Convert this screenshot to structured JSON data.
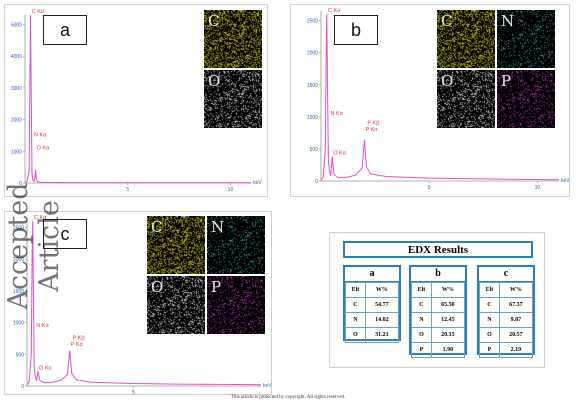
{
  "footer": "This article is protected by copyright. All rights reserved.",
  "watermark": "Accepted Article",
  "axis_unit": "keV",
  "colors": {
    "spectrum": "#e24fcf",
    "peak_label": "#d83a3a",
    "axis_text": "#2b62b8",
    "table_border": "#2f7fb7"
  },
  "panels": [
    {
      "id": "a",
      "label": "a",
      "maps": [
        {
          "element": "C",
          "color": "#c9c21f"
        },
        {
          "element": "O",
          "color": "#e0e0e0"
        }
      ]
    },
    {
      "id": "b",
      "label": "b",
      "maps": [
        {
          "element": "C",
          "color": "#c9c21f"
        },
        {
          "element": "N",
          "color": "#3fb2b8"
        },
        {
          "element": "O",
          "color": "#e0e0e0"
        },
        {
          "element": "P",
          "color": "#c03ac0"
        }
      ]
    },
    {
      "id": "c",
      "label": "c",
      "maps": [
        {
          "element": "C",
          "color": "#c9c21f"
        },
        {
          "element": "N",
          "color": "#3fb2b8"
        },
        {
          "element": "O",
          "color": "#e0e0e0"
        },
        {
          "element": "P",
          "color": "#c03ac0"
        }
      ]
    }
  ],
  "chart_data": [
    {
      "type": "line",
      "panel": "a",
      "xlabel": "keV",
      "xlim": [
        0,
        11
      ],
      "ylim": [
        0,
        5300
      ],
      "xticks": [
        5,
        10
      ],
      "yticks": [
        0,
        1000,
        2000,
        3000,
        4000,
        5000
      ],
      "x": [
        0,
        0.1,
        0.2,
        0.24,
        0.27,
        0.3,
        0.34,
        0.39,
        0.45,
        0.5,
        0.52,
        0.55,
        0.6,
        0.8,
        1.5,
        3,
        5,
        7,
        9,
        11
      ],
      "y": [
        20,
        60,
        400,
        3000,
        5300,
        3000,
        300,
        80,
        50,
        260,
        420,
        150,
        40,
        25,
        15,
        10,
        8,
        6,
        5,
        5
      ],
      "peak_labels": [
        {
          "text": "C Kα",
          "x": 0.28,
          "y": 5300
        },
        {
          "text": "N Kα",
          "x": 0.39,
          "y": 1400
        },
        {
          "text": "O Kα",
          "x": 0.52,
          "y": 1000
        }
      ]
    },
    {
      "type": "line",
      "panel": "b",
      "xlabel": "keV",
      "xlim": [
        0,
        11
      ],
      "ylim": [
        0,
        2650
      ],
      "xticks": [
        5,
        10
      ],
      "yticks": [
        0,
        500,
        1000,
        1500,
        2000,
        2500
      ],
      "x": [
        0,
        0.1,
        0.2,
        0.24,
        0.27,
        0.3,
        0.34,
        0.39,
        0.45,
        0.52,
        0.6,
        0.8,
        1.2,
        1.6,
        1.9,
        2.01,
        2.1,
        2.3,
        3,
        5,
        7,
        9,
        11
      ],
      "y": [
        20,
        60,
        500,
        2000,
        2600,
        1500,
        300,
        160,
        80,
        380,
        100,
        50,
        60,
        90,
        200,
        640,
        220,
        110,
        70,
        45,
        35,
        25,
        20
      ],
      "peak_labels": [
        {
          "text": "C Kα",
          "x": 0.28,
          "y": 2600
        },
        {
          "text": "N Kα",
          "x": 0.39,
          "y": 1000
        },
        {
          "text": "O Kα",
          "x": 0.52,
          "y": 380
        },
        {
          "text": "P Kβ",
          "x": 2.1,
          "y": 850
        },
        {
          "text": "P Kα",
          "x": 2.01,
          "y": 750
        }
      ]
    },
    {
      "type": "line",
      "panel": "c",
      "xlabel": "keV",
      "xlim": [
        0,
        11
      ],
      "ylim": [
        0,
        2650
      ],
      "xticks": [
        5
      ],
      "yticks": [
        0,
        500,
        1000,
        1500,
        2000,
        2500
      ],
      "x": [
        0,
        0.1,
        0.2,
        0.24,
        0.27,
        0.3,
        0.34,
        0.39,
        0.45,
        0.52,
        0.6,
        0.8,
        1.2,
        1.6,
        1.9,
        2.01,
        2.1,
        2.3,
        3,
        5,
        7,
        9,
        11
      ],
      "y": [
        20,
        60,
        500,
        2000,
        2600,
        1500,
        300,
        150,
        80,
        230,
        90,
        50,
        60,
        90,
        180,
        560,
        200,
        100,
        60,
        40,
        30,
        25,
        20
      ],
      "peak_labels": [
        {
          "text": "C Kα",
          "x": 0.28,
          "y": 2600
        },
        {
          "text": "N Kα",
          "x": 0.39,
          "y": 900
        },
        {
          "text": "O Kα",
          "x": 0.52,
          "y": 230
        },
        {
          "text": "P Kβ",
          "x": 2.1,
          "y": 700
        },
        {
          "text": "P Kα",
          "x": 2.01,
          "y": 600
        }
      ]
    },
    {
      "type": "table",
      "title": "EDX Results",
      "groups": [
        {
          "name": "a",
          "header": [
            "Elt",
            "W%"
          ],
          "rows": [
            [
              "C",
              "54.77"
            ],
            [
              "N",
              "14.02"
            ],
            [
              "O",
              "31.21"
            ]
          ]
        },
        {
          "name": "b",
          "header": [
            "Elt",
            "W%"
          ],
          "rows": [
            [
              "C",
              "65.50"
            ],
            [
              "N",
              "12.45"
            ],
            [
              "O",
              "20.15"
            ],
            [
              "P",
              "1.90"
            ]
          ]
        },
        {
          "name": "c",
          "header": [
            "Elt",
            "W%"
          ],
          "rows": [
            [
              "C",
              "67.37"
            ],
            [
              "N",
              "9.87"
            ],
            [
              "O",
              "20.57"
            ],
            [
              "P",
              "2.19"
            ]
          ]
        }
      ]
    }
  ]
}
